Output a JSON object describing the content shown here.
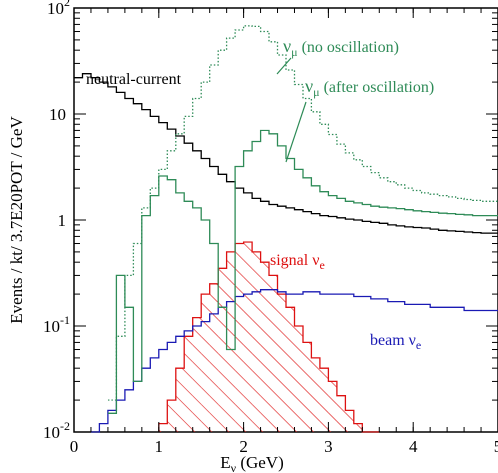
{
  "chart_data": {
    "type": "line",
    "xlabel_main": "E",
    "xlabel_sub": "ν",
    "xlabel_unit": " (GeV)",
    "ylabel": "Events / kt/ 3.7E20POT / GeV",
    "xlim": [
      0,
      5
    ],
    "ylim": [
      0.01,
      100
    ],
    "yscale": "log",
    "x_ticks": [
      {
        "value": 0,
        "label": "0"
      },
      {
        "value": 1,
        "label": "1"
      },
      {
        "value": 2,
        "label": "2"
      },
      {
        "value": 3,
        "label": "3"
      },
      {
        "value": 4,
        "label": "4"
      },
      {
        "value": 5,
        "label": "5"
      }
    ],
    "y_ticks": [
      {
        "value": 100,
        "base": "10",
        "exp": "2"
      },
      {
        "value": 10,
        "base": "10",
        "exp": ""
      },
      {
        "value": 1,
        "base": "1",
        "exp": ""
      },
      {
        "value": 0.1,
        "base": "10",
        "exp": "-1"
      },
      {
        "value": 0.01,
        "base": "10",
        "exp": "-2"
      }
    ],
    "bin_width": 0.1,
    "bin_start": 0,
    "series": [
      {
        "name": "ν_μ (no oscillation)",
        "color": "#2e8b57",
        "style": "dotted",
        "x_start": 0.4,
        "values": [
          0.02,
          0.08,
          0.3,
          0.6,
          1.3,
          2.0,
          3.0,
          4.5,
          6.5,
          9.5,
          14,
          20,
          29,
          40,
          52,
          62,
          68,
          67,
          60,
          48,
          36,
          26,
          19,
          14,
          10.5,
          8,
          6.4,
          5.2,
          4.3,
          3.7,
          3.2,
          2.8,
          2.5,
          2.3,
          2.15,
          2.0,
          1.9,
          1.8,
          1.75,
          1.7,
          1.65,
          1.6,
          1.56,
          1.53,
          1.5,
          1.5
        ]
      },
      {
        "name": "ν_μ (after oscillation)",
        "color": "#2e8b57",
        "style": "solid",
        "x_start": 0.4,
        "values": [
          0.015,
          0.3,
          0.15,
          0.03,
          1.1,
          1.7,
          2.6,
          2.4,
          1.8,
          1.5,
          1.3,
          1.0,
          0.6,
          0.15,
          0.06,
          3.2,
          4.5,
          5.5,
          7.0,
          6.5,
          5.0,
          3.8,
          3.0,
          2.5,
          2.1,
          1.85,
          1.7,
          1.6,
          1.5,
          1.45,
          1.4,
          1.35,
          1.32,
          1.3,
          1.28,
          1.25,
          1.22,
          1.2,
          1.18,
          1.16,
          1.15,
          1.13,
          1.12,
          1.1,
          1.1,
          1.1
        ]
      },
      {
        "name": "neutral-current",
        "color": "#000000",
        "style": "solid",
        "x_start": 0.0,
        "values": [
          22,
          24,
          22,
          20,
          18,
          16,
          14,
          12.5,
          11,
          9.5,
          8.3,
          7.2,
          6.2,
          5.3,
          4.5,
          3.8,
          3.2,
          2.7,
          2.3,
          2.0,
          1.8,
          1.6,
          1.5,
          1.4,
          1.35,
          1.3,
          1.25,
          1.2,
          1.15,
          1.1,
          1.08,
          1.05,
          1.02,
          1.0,
          0.97,
          0.95,
          0.93,
          0.9,
          0.88,
          0.86,
          0.85,
          0.84,
          0.82,
          0.8,
          0.79,
          0.78,
          0.77,
          0.76,
          0.75,
          0.75
        ]
      },
      {
        "name": "beam ν_e",
        "color": "#1a1ab4",
        "style": "solid",
        "x_start": 0.2,
        "values": [
          0.008,
          0.012,
          0.016,
          0.02,
          0.025,
          0.03,
          0.04,
          0.05,
          0.06,
          0.07,
          0.08,
          0.09,
          0.1,
          0.11,
          0.13,
          0.15,
          0.17,
          0.19,
          0.2,
          0.21,
          0.22,
          0.22,
          0.21,
          0.2,
          0.2,
          0.21,
          0.21,
          0.2,
          0.2,
          0.2,
          0.2,
          0.19,
          0.19,
          0.18,
          0.18,
          0.17,
          0.17,
          0.16,
          0.16,
          0.16,
          0.15,
          0.15,
          0.15,
          0.15,
          0.14,
          0.14,
          0.14,
          0.14
        ]
      },
      {
        "name": "signal ν_e",
        "color": "#dd1111",
        "style": "hatched",
        "x_start": 1.0,
        "values": [
          0.012,
          0.02,
          0.04,
          0.08,
          0.12,
          0.2,
          0.25,
          0.35,
          0.5,
          0.6,
          0.62,
          0.5,
          0.4,
          0.3,
          0.2,
          0.15,
          0.1,
          0.07,
          0.05,
          0.04,
          0.03,
          0.022,
          0.016,
          0.012,
          0.01,
          0.008
        ]
      }
    ],
    "annotations": [
      {
        "name": "ann-numu-noosc",
        "main": "ν",
        "sub": "μ",
        "rest": " (no oscillation)",
        "color": "#2e8b57"
      },
      {
        "name": "ann-numu-osc",
        "main": "ν",
        "sub": "μ",
        "rest": " (after oscillation)",
        "color": "#2e8b57"
      },
      {
        "name": "ann-nc",
        "main": "neutral-current",
        "sub": "",
        "rest": "",
        "color": "#000000"
      },
      {
        "name": "ann-signal",
        "main": "signal ν",
        "sub": "e",
        "rest": "",
        "color": "#dd1111"
      },
      {
        "name": "ann-beam",
        "main": "beam ν",
        "sub": "e",
        "rest": "",
        "color": "#1a1ab4"
      }
    ],
    "grid": false,
    "legend": "none"
  }
}
